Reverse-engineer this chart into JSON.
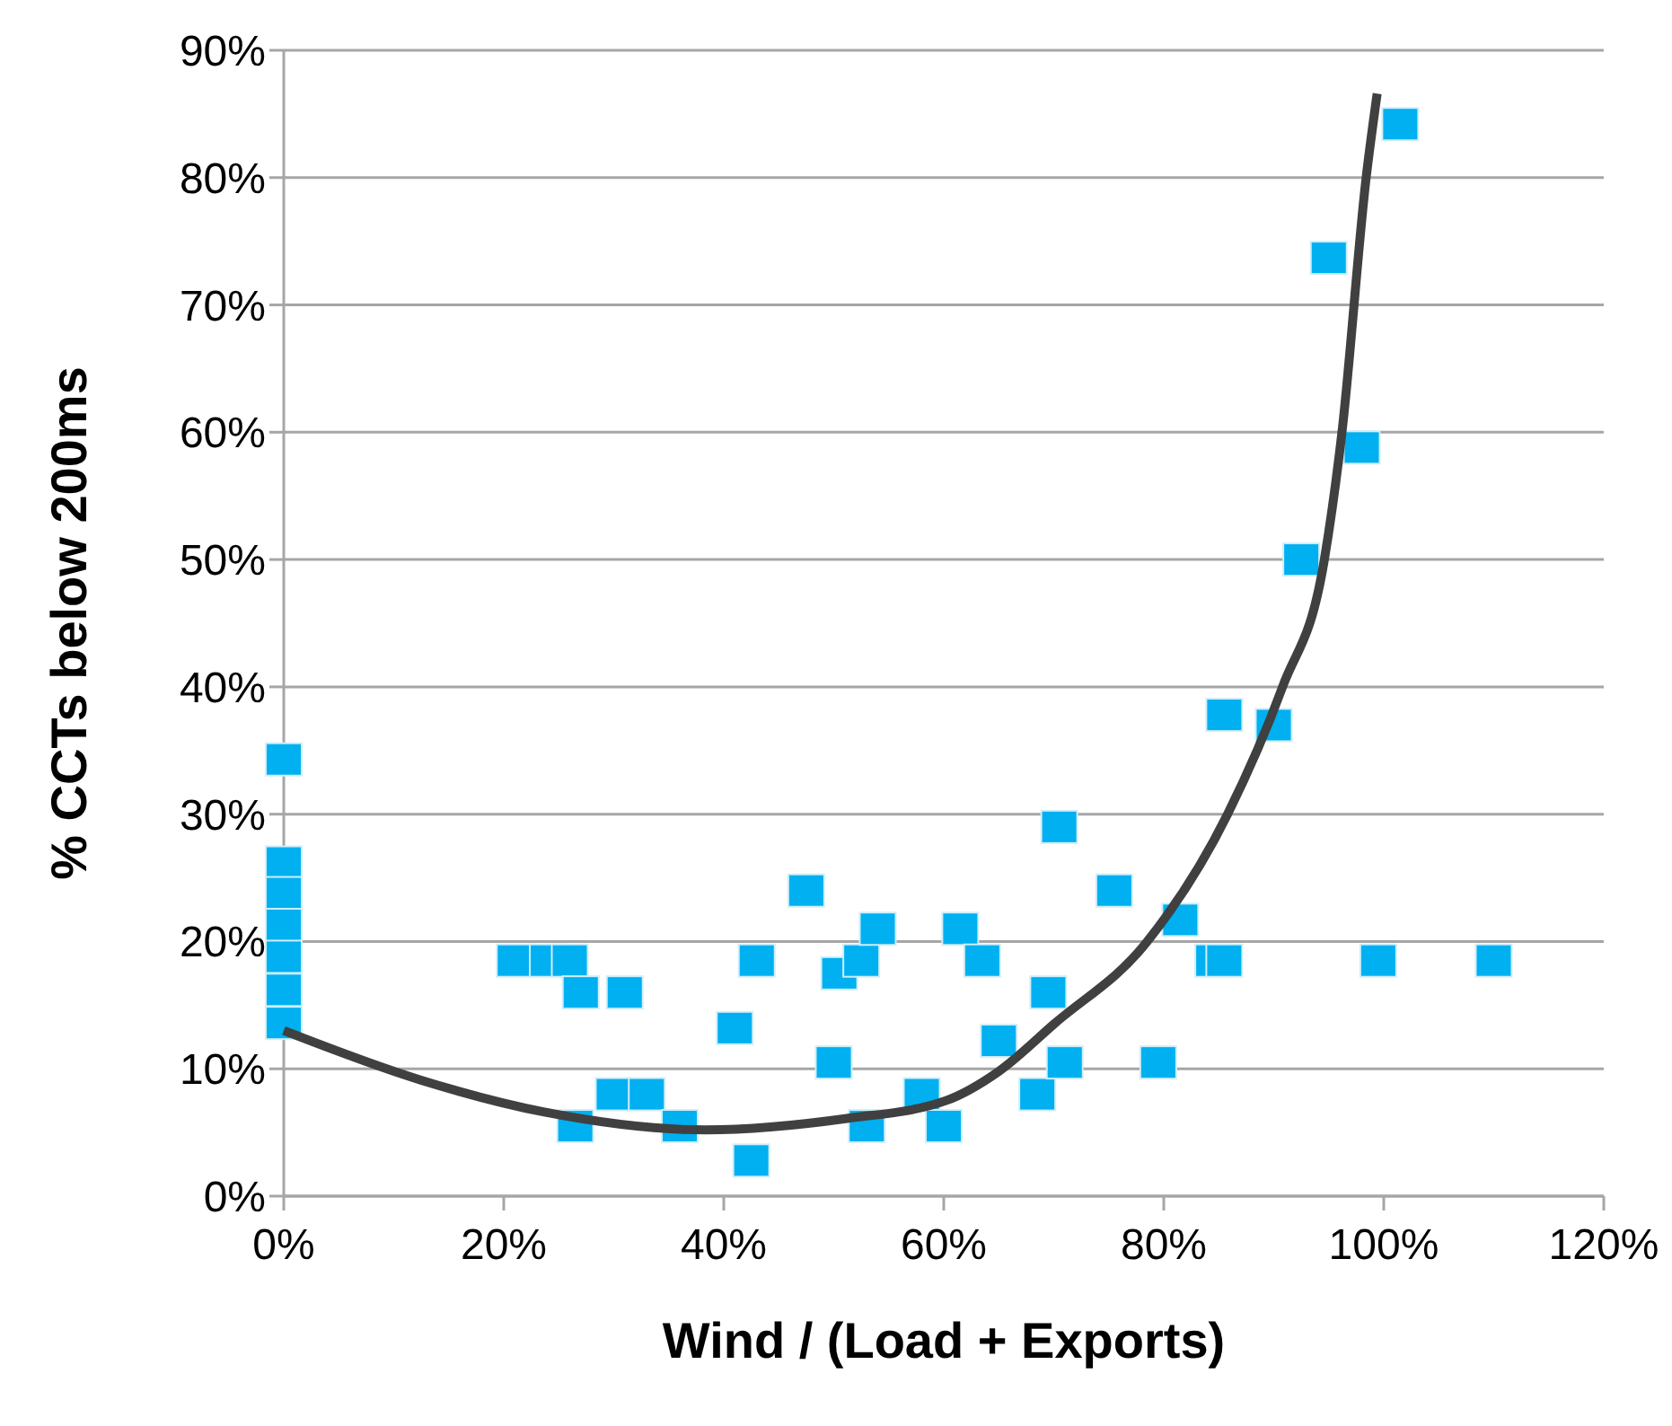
{
  "chart_data": {
    "type": "scatter",
    "xlabel": "Wind / (Load + Exports)",
    "ylabel": "% CCTs below 200ms",
    "xlim": [
      0,
      120
    ],
    "xticks": [
      {
        "value": 0,
        "label": "0%"
      },
      {
        "value": 20,
        "label": "20%"
      },
      {
        "value": 40,
        "label": "40%"
      },
      {
        "value": 60,
        "label": "60%"
      },
      {
        "value": 80,
        "label": "80%"
      },
      {
        "value": 100,
        "label": "100%"
      },
      {
        "value": 120,
        "label": "120%"
      }
    ],
    "ylim": [
      0,
      90
    ],
    "yticks": [
      {
        "value": 0,
        "label": "0%"
      },
      {
        "value": 10,
        "label": "10%"
      },
      {
        "value": 20,
        "label": "20%"
      },
      {
        "value": 30,
        "label": "30%"
      },
      {
        "value": 40,
        "label": "40%"
      },
      {
        "value": 50,
        "label": "50%"
      },
      {
        "value": 60,
        "label": "60%"
      },
      {
        "value": 70,
        "label": "70%"
      },
      {
        "value": 80,
        "label": "80%"
      },
      {
        "value": 90,
        "label": "90%"
      }
    ],
    "grid": "y",
    "marker": "square",
    "series": [
      {
        "color": "#00b0f0",
        "x": [
          0,
          0,
          0,
          0,
          0,
          0,
          0,
          21,
          24,
          26,
          27,
          31,
          26.5,
          30,
          33,
          36,
          41,
          43,
          42.5,
          47.5,
          50,
          50.5,
          52.5,
          54,
          53,
          58,
          60,
          61.5,
          63.5,
          65,
          68.5,
          69.5,
          70.5,
          71,
          75.5,
          79.5,
          81.5,
          84.5,
          85.5,
          85.5,
          90,
          92.5,
          98,
          95,
          101.5,
          99.5,
          110
        ],
        "values": [
          34.3,
          26.2,
          23.8,
          21.3,
          18.8,
          16.2,
          13.6,
          18.5,
          18.5,
          18.5,
          16,
          16,
          5.5,
          8,
          8,
          5.5,
          13.2,
          18.5,
          2.8,
          24,
          10.5,
          17.5,
          18.5,
          21,
          5.5,
          8,
          5.5,
          21,
          18.5,
          12.2,
          8,
          16,
          29,
          10.5,
          24,
          10.5,
          21.7,
          18.5,
          18.5,
          37.8,
          37,
          50,
          58.8,
          73.7,
          84.2,
          18.5,
          18.5
        ]
      },
      {
        "type": "line",
        "color": "#404040",
        "marker": "none",
        "x": [
          0,
          12.5,
          23.7,
          38.3,
          51.2,
          60.2,
          65,
          70,
          78.5,
          85.8,
          90.8,
          94.6,
          96.2,
          98.4,
          99.4
        ],
        "values": [
          13,
          9.1,
          6.6,
          5.2,
          6.1,
          7.5,
          9.8,
          13.5,
          20,
          30,
          40,
          50,
          60,
          80,
          86.6
        ]
      }
    ]
  }
}
